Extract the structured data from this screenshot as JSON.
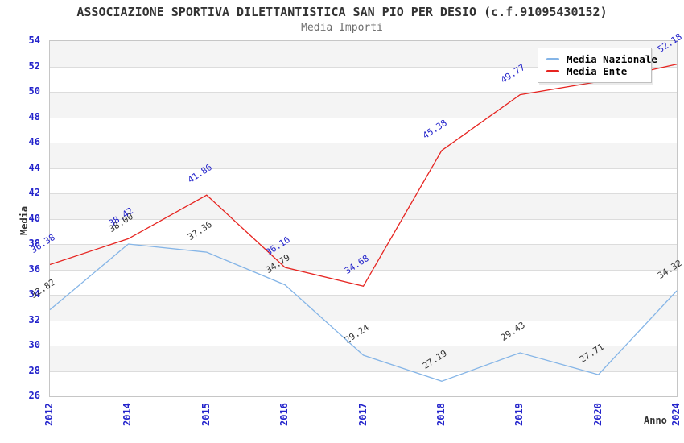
{
  "chart_data": {
    "type": "line",
    "title": "ASSOCIAZIONE SPORTIVA DILETTANTISTICA SAN PIO PER DESIO (c.f.91095430152)",
    "subtitle": "Media Importi",
    "xlabel": "Anno",
    "ylabel": "Media",
    "ylim": [
      26,
      54
    ],
    "ytick_step": 2,
    "categories": [
      "2012",
      "2014",
      "2015",
      "2016",
      "2017",
      "2018",
      "2019",
      "2020",
      "2024"
    ],
    "series": [
      {
        "name": "Media Nazionale",
        "color": "#85b5e7",
        "label_color": "#333333",
        "values": [
          32.82,
          38.0,
          37.36,
          34.79,
          29.24,
          27.19,
          29.43,
          27.71,
          34.32
        ],
        "point_labels": [
          "32.82",
          "38.00",
          "37.36",
          "34.79",
          "29.24",
          "27.19",
          "29.43",
          "27.71",
          "34.32"
        ]
      },
      {
        "name": "Media Ente",
        "color": "#e62420",
        "label_color": "#2323cb",
        "values": [
          36.38,
          38.42,
          41.86,
          36.16,
          34.68,
          45.38,
          49.77,
          50.8,
          52.18
        ],
        "point_labels": [
          "36.38",
          "38.42",
          "41.86",
          "36.16",
          "34.68",
          "45.38",
          "49.77",
          "",
          "52.18"
        ]
      }
    ],
    "legend_position": "top-right",
    "grid": "horizontal-bands",
    "band_colors": [
      "#f4f4f4",
      "#ffffff"
    ],
    "gridline_color": "#dcdcdc",
    "tick_color": "#2323cb"
  }
}
